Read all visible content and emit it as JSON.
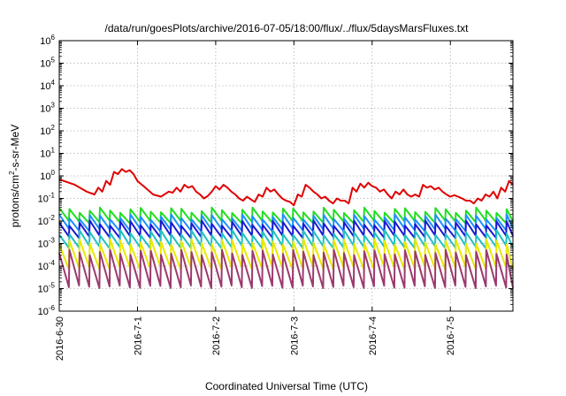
{
  "chart_data": {
    "type": "line",
    "title": "/data/run/goesPlots/archive/2016-07-05/18:00/flux/../flux/5daysMarsFluxes.txt",
    "xlabel": "Coordinated Universal Time (UTC)",
    "ylabel": "protons/cm2-s-sr-MeV",
    "ylabel_parts": {
      "pre": "protons/cm",
      "sup": "2",
      "post": "-s-sr-MeV"
    },
    "yscale": "log",
    "ylim_exp": [
      -6,
      6
    ],
    "xlim_days": [
      0,
      5.8
    ],
    "x_start": "2016-6-30",
    "x_end_note": "",
    "grid": true,
    "x_ticks": [
      {
        "day": 0,
        "label": "2016-6-30"
      },
      {
        "day": 1,
        "label": "2016-7-1"
      },
      {
        "day": 2,
        "label": "2016-7-2"
      },
      {
        "day": 3,
        "label": "2016-7-3"
      },
      {
        "day": 4,
        "label": "2016-7-4"
      },
      {
        "day": 5,
        "label": "2016-7-5"
      }
    ],
    "y_ticks": [
      {
        "exp": 6,
        "base": "10",
        "sup": "6"
      },
      {
        "exp": 5,
        "base": "10",
        "sup": "5"
      },
      {
        "exp": 4,
        "base": "10",
        "sup": "4"
      },
      {
        "exp": 3,
        "base": "10",
        "sup": "3"
      },
      {
        "exp": 2,
        "base": "10",
        "sup": "2"
      },
      {
        "exp": 1,
        "base": "10",
        "sup": "1"
      },
      {
        "exp": 0,
        "base": "10",
        "sup": "0"
      },
      {
        "exp": -1,
        "base": "10",
        "sup": "-1"
      },
      {
        "exp": -2,
        "base": "10",
        "sup": "-2"
      },
      {
        "exp": -3,
        "base": "10",
        "sup": "-3"
      },
      {
        "exp": -4,
        "base": "10",
        "sup": "-4"
      },
      {
        "exp": -5,
        "base": "10",
        "sup": "-5"
      },
      {
        "exp": -6,
        "base": "10",
        "sup": "-6"
      }
    ],
    "series": [
      {
        "color": "#e00000",
        "style": "polyline",
        "x": [
          0,
          0.2,
          0.35,
          0.45,
          0.5,
          0.55,
          0.6,
          0.65,
          0.7,
          0.75,
          0.8,
          0.85,
          0.9,
          0.95,
          1.0,
          1.1,
          1.2,
          1.3,
          1.4,
          1.45,
          1.5,
          1.55,
          1.6,
          1.65,
          1.7,
          1.75,
          1.8,
          1.85,
          1.9,
          1.95,
          2.0,
          2.05,
          2.1,
          2.15,
          2.2,
          2.25,
          2.3,
          2.35,
          2.4,
          2.45,
          2.5,
          2.55,
          2.6,
          2.65,
          2.7,
          2.75,
          2.8,
          2.85,
          2.9,
          2.95,
          3.0,
          3.05,
          3.1,
          3.15,
          3.2,
          3.25,
          3.3,
          3.35,
          3.4,
          3.45,
          3.5,
          3.55,
          3.6,
          3.65,
          3.7,
          3.75,
          3.8,
          3.85,
          3.9,
          3.95,
          4.0,
          4.05,
          4.1,
          4.15,
          4.2,
          4.25,
          4.3,
          4.35,
          4.4,
          4.45,
          4.5,
          4.55,
          4.6,
          4.65,
          4.7,
          4.75,
          4.8,
          4.85,
          4.9,
          4.95,
          5.0,
          5.05,
          5.1,
          5.15,
          5.2,
          5.25,
          5.3,
          5.35,
          5.4,
          5.45,
          5.5,
          5.55,
          5.6,
          5.65,
          5.7,
          5.75,
          5.8
        ],
        "y": [
          0.7,
          0.4,
          0.2,
          0.15,
          0.3,
          0.2,
          0.6,
          0.4,
          1.5,
          1.2,
          2.0,
          1.5,
          1.8,
          1.2,
          0.6,
          0.3,
          0.15,
          0.12,
          0.2,
          0.18,
          0.3,
          0.2,
          0.4,
          0.3,
          0.35,
          0.2,
          0.15,
          0.1,
          0.13,
          0.2,
          0.35,
          0.25,
          0.4,
          0.3,
          0.2,
          0.15,
          0.1,
          0.08,
          0.12,
          0.09,
          0.07,
          0.15,
          0.12,
          0.3,
          0.2,
          0.25,
          0.15,
          0.1,
          0.08,
          0.07,
          0.05,
          0.15,
          0.12,
          0.4,
          0.3,
          0.2,
          0.15,
          0.1,
          0.12,
          0.08,
          0.06,
          0.1,
          0.08,
          0.08,
          0.06,
          0.3,
          0.2,
          0.45,
          0.3,
          0.5,
          0.35,
          0.3,
          0.2,
          0.25,
          0.15,
          0.1,
          0.2,
          0.15,
          0.25,
          0.15,
          0.12,
          0.15,
          0.12,
          0.4,
          0.3,
          0.35,
          0.25,
          0.3,
          0.2,
          0.15,
          0.12,
          0.14,
          0.12,
          0.1,
          0.08,
          0.08,
          0.06,
          0.1,
          0.08,
          0.15,
          0.12,
          0.2,
          0.1,
          0.3,
          0.2,
          0.6,
          0.4
        ]
      },
      {
        "color": "#22dd22",
        "style": "sawtooth",
        "period": 0.13,
        "peak": 0.03,
        "trough": 0.009
      },
      {
        "color": "#1e90ff",
        "style": "sawtooth",
        "period": 0.13,
        "peak": 0.015,
        "trough": 0.004
      },
      {
        "color": "#1a1ad0",
        "style": "sawtooth",
        "period": 0.13,
        "peak": 0.008,
        "trough": 0.002
      },
      {
        "color": "#20c0c0",
        "style": "sawtooth",
        "period": 0.13,
        "peak": 0.003,
        "trough": 0.0007
      },
      {
        "color": "#e8e800",
        "style": "sawtooth",
        "period": 0.13,
        "peak": 0.0012,
        "trough": 8e-05
      },
      {
        "color": "#9b3a6e",
        "style": "sawtooth",
        "period": 0.13,
        "peak": 0.0004,
        "trough": 1.2e-05
      }
    ]
  }
}
